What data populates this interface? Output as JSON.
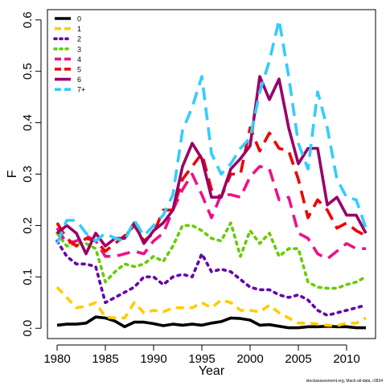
{
  "chart_data": {
    "type": "line",
    "title": "",
    "xlabel": "Year",
    "ylabel": "F",
    "xlim": [
      1979,
      2013
    ],
    "ylim": [
      -0.02,
      0.62
    ],
    "xticks": [
      1980,
      1985,
      1990,
      1995,
      2000,
      2005,
      2010
    ],
    "yticks": [
      0.0,
      0.1,
      0.2,
      0.3,
      0.4,
      0.5,
      0.6
    ],
    "ytick_labels": [
      "0.0",
      "0.1",
      "0.2",
      "0.3",
      "0.4",
      "0.5",
      "0.6"
    ],
    "legend_position": "top-left",
    "x": [
      1980,
      1981,
      1982,
      1983,
      1984,
      1985,
      1986,
      1987,
      1988,
      1989,
      1990,
      1991,
      1992,
      1993,
      1994,
      1995,
      1996,
      1997,
      1998,
      1999,
      2000,
      2001,
      2002,
      2003,
      2004,
      2005,
      2006,
      2007,
      2008,
      2009,
      2010,
      2011,
      2012
    ],
    "series": [
      {
        "name": "0",
        "color": "#000000",
        "dash": "solid",
        "values": [
          0.006,
          0.008,
          0.008,
          0.01,
          0.022,
          0.02,
          0.014,
          0.003,
          0.012,
          0.012,
          0.009,
          0.005,
          0.008,
          0.006,
          0.008,
          0.006,
          0.01,
          0.013,
          0.02,
          0.019,
          0.016,
          0.006,
          0.007,
          0.004,
          0.001,
          0.001,
          0.003,
          0.003,
          0.004,
          0.003,
          0.003,
          0.001,
          0.001
        ]
      },
      {
        "name": "1",
        "color": "#ffcc00",
        "dash": "dashed",
        "values": [
          0.08,
          0.06,
          0.04,
          0.043,
          0.05,
          0.022,
          0.02,
          0.02,
          0.05,
          0.03,
          0.035,
          0.032,
          0.04,
          0.04,
          0.04,
          0.05,
          0.04,
          0.055,
          0.05,
          0.035,
          0.035,
          0.032,
          0.045,
          0.03,
          0.02,
          0.01,
          0.01,
          0.008,
          0.006,
          0.005,
          0.01,
          0.01,
          0.02
        ]
      },
      {
        "name": "2",
        "color": "#6600aa",
        "dash": "dotted",
        "values": [
          0.17,
          0.14,
          0.125,
          0.125,
          0.12,
          0.05,
          0.06,
          0.07,
          0.08,
          0.1,
          0.1,
          0.085,
          0.1,
          0.105,
          0.1,
          0.145,
          0.11,
          0.115,
          0.11,
          0.095,
          0.08,
          0.075,
          0.075,
          0.065,
          0.06,
          0.065,
          0.055,
          0.035,
          0.025,
          0.03,
          0.035,
          0.04,
          0.045
        ]
      },
      {
        "name": "3",
        "color": "#66cc00",
        "dash": "dotted",
        "values": [
          0.185,
          0.16,
          0.165,
          0.165,
          0.155,
          0.09,
          0.11,
          0.125,
          0.12,
          0.125,
          0.14,
          0.13,
          0.16,
          0.2,
          0.2,
          0.19,
          0.175,
          0.17,
          0.205,
          0.14,
          0.19,
          0.165,
          0.185,
          0.14,
          0.155,
          0.155,
          0.09,
          0.08,
          0.078,
          0.078,
          0.085,
          0.09,
          0.1
        ]
      },
      {
        "name": "4",
        "color": "#ee1188",
        "dash": "longdash",
        "values": [
          0.195,
          0.165,
          0.17,
          0.18,
          0.17,
          0.14,
          0.14,
          0.145,
          0.15,
          0.145,
          0.17,
          0.185,
          0.23,
          0.27,
          0.3,
          0.26,
          0.215,
          0.26,
          0.26,
          0.255,
          0.295,
          0.315,
          0.31,
          0.25,
          0.255,
          0.185,
          0.175,
          0.145,
          0.135,
          0.15,
          0.165,
          0.155,
          0.155
        ]
      },
      {
        "name": "5",
        "color": "#ee0000",
        "dash": "longdash",
        "values": [
          0.205,
          0.175,
          0.16,
          0.175,
          0.17,
          0.15,
          0.165,
          0.18,
          0.2,
          0.17,
          0.185,
          0.23,
          0.23,
          0.29,
          0.315,
          0.34,
          0.27,
          0.255,
          0.3,
          0.3,
          0.39,
          0.345,
          0.38,
          0.35,
          0.345,
          0.29,
          0.215,
          0.25,
          0.23,
          0.195,
          0.205,
          0.19,
          0.18
        ]
      },
      {
        "name": "6",
        "color": "#990066",
        "dash": "solid",
        "values": [
          0.185,
          0.2,
          0.185,
          0.145,
          0.185,
          0.16,
          0.175,
          0.175,
          0.205,
          0.165,
          0.19,
          0.205,
          0.23,
          0.315,
          0.36,
          0.33,
          0.255,
          0.255,
          0.31,
          0.33,
          0.355,
          0.49,
          0.445,
          0.485,
          0.39,
          0.32,
          0.35,
          0.35,
          0.24,
          0.255,
          0.22,
          0.22,
          0.185
        ]
      },
      {
        "name": "7+",
        "color": "#33ccff",
        "dash": "longdash",
        "values": [
          0.165,
          0.21,
          0.21,
          0.185,
          0.17,
          0.185,
          0.175,
          0.17,
          0.21,
          0.18,
          0.2,
          0.22,
          0.26,
          0.385,
          0.43,
          0.49,
          0.34,
          0.3,
          0.32,
          0.35,
          0.37,
          0.46,
          0.52,
          0.6,
          0.49,
          0.36,
          0.31,
          0.46,
          0.39,
          0.29,
          0.255,
          0.25,
          0.195
        ]
      }
    ]
  },
  "credit": "stockassessment.org, Mack-all-data, r2834"
}
